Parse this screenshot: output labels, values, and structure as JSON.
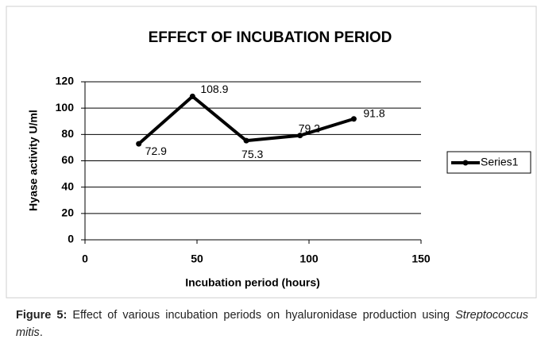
{
  "chart_data": {
    "type": "line",
    "title": "EFFECT OF INCUBATION PERIOD",
    "x_label": "Incubation period (hours)",
    "y_label": "Hyase activity U/ml",
    "x": [
      24,
      48,
      72,
      96,
      120
    ],
    "series": [
      {
        "name": "Series1",
        "color": "#000000",
        "values": [
          72.9,
          108.9,
          75.3,
          79.2,
          91.8
        ]
      }
    ],
    "xlim": [
      0,
      150
    ],
    "xticks": [
      0,
      50,
      100,
      150
    ],
    "ylim": [
      0,
      120
    ],
    "yticks": [
      0,
      20,
      40,
      60,
      80,
      100,
      120
    ],
    "grid": true,
    "legend": "right"
  },
  "caption": {
    "label": "Figure 5:",
    "text": "Effect of various incubation periods on hyaluronidase production using ",
    "species": "Streptococcus mitis",
    "end": "."
  }
}
